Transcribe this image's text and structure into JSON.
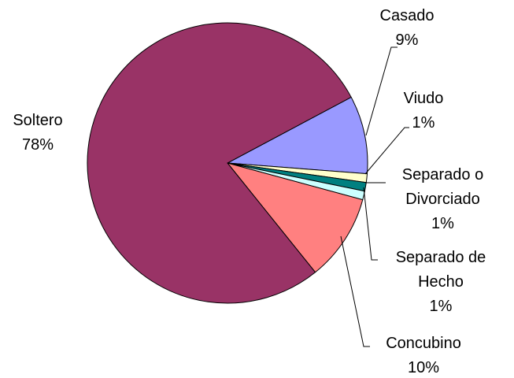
{
  "chart_data": {
    "type": "pie",
    "categories": [
      "Casado",
      "Viudo",
      "Separado o Divorciado",
      "Separado de Hecho",
      "Concubino",
      "Soltero"
    ],
    "values": [
      9,
      1,
      1,
      1,
      10,
      78
    ],
    "value_labels": [
      "9%",
      "1%",
      "1%",
      "1%",
      "10%",
      "78%"
    ],
    "colors": [
      "#9999ff",
      "#ffffcc",
      "#008080",
      "#ccffff",
      "#ff8080",
      "#993366"
    ]
  }
}
